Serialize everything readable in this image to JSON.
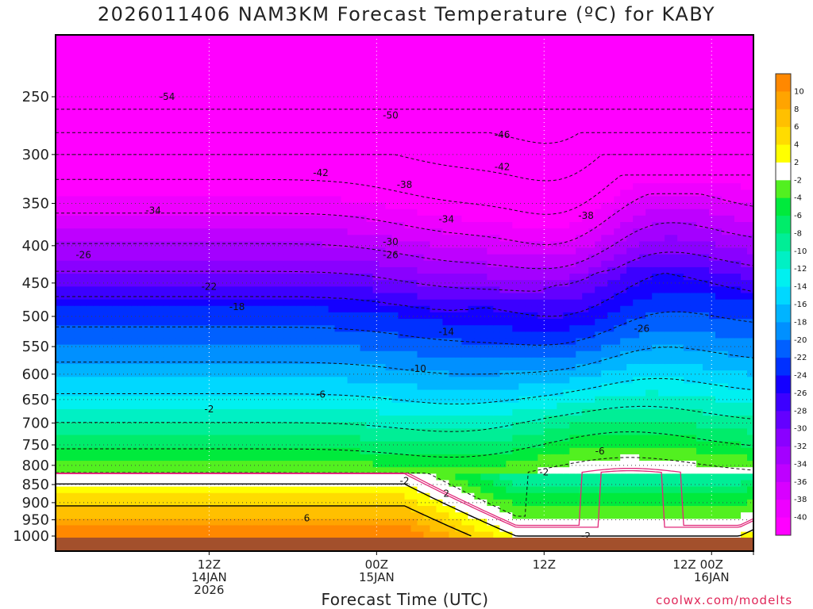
{
  "chart_data": {
    "type": "heatmap",
    "title": "2026011406 NAM3KM Forecast Temperature (ºC) for KABY",
    "xlabel": "Forecast Time (UTC)",
    "ylabel": "",
    "y_axis": {
      "scale": "log-pressure",
      "reversed": true,
      "range": [
        1000,
        200
      ],
      "ticks": [
        250,
        300,
        350,
        400,
        450,
        500,
        550,
        600,
        650,
        700,
        750,
        800,
        850,
        900,
        950,
        1000
      ]
    },
    "x_axis": {
      "range_hours": [
        -5,
        45
      ],
      "ticks": [
        {
          "hour": 6,
          "lines": [
            "12Z",
            "14JAN",
            "2026"
          ]
        },
        {
          "hour": 18,
          "lines": [
            "00Z",
            "15JAN"
          ]
        },
        {
          "hour": 30,
          "lines": [
            "12Z"
          ]
        },
        {
          "hour": 42,
          "lines": [
            "00Z",
            "16JAN"
          ]
        },
        {
          "hour": 54,
          "lines": [
            "12Z"
          ]
        }
      ]
    },
    "grid": true,
    "colorbar": {
      "placement": "right",
      "labels": [
        10,
        8,
        6,
        4,
        2,
        -2,
        -4,
        -6,
        -8,
        -10,
        -12,
        -14,
        -16,
        -18,
        -20,
        -22,
        -24,
        -26,
        -28,
        -30,
        -32,
        -34,
        -36,
        -38,
        -40
      ]
    },
    "isotherms": [
      {
        "t": -54,
        "label_at": [
          3,
          250
        ]
      },
      {
        "t": -50,
        "label_at": [
          19,
          265
        ]
      },
      {
        "t": -46,
        "label_at": [
          27,
          282
        ],
        "label2_at": [
          49,
          262
        ]
      },
      {
        "t": -42,
        "label_at": [
          14,
          318
        ],
        "label2_at": [
          27,
          312
        ],
        "label3_at": [
          60,
          294
        ]
      },
      {
        "t": -38,
        "label_at": [
          20,
          330
        ],
        "label2_at": [
          33,
          364
        ],
        "label3_at": [
          58,
          322
        ]
      },
      {
        "t": -34,
        "label_at": [
          2,
          358
        ],
        "label2_at": [
          23,
          368
        ],
        "label3_at": [
          58,
          370
        ]
      },
      {
        "t": -30,
        "label_at": [
          19,
          395
        ],
        "label2_at": [
          49,
          425
        ]
      },
      {
        "t": -26,
        "label_at": [
          -3,
          412
        ],
        "label2_at": [
          19,
          412
        ],
        "label3_at": [
          37,
          520
        ]
      },
      {
        "t": -22,
        "label_at": [
          6,
          455
        ],
        "label2_at": [
          56,
          480
        ]
      },
      {
        "t": -18,
        "label_at": [
          8,
          485
        ],
        "label2_at": [
          48,
          515
        ]
      },
      {
        "t": -14,
        "label_at": [
          23,
          525
        ]
      },
      {
        "t": -10,
        "label_at": [
          21,
          590
        ],
        "label2_at": [
          49,
          655
        ]
      },
      {
        "t": -6,
        "label_at": [
          14,
          640
        ],
        "label2_at": [
          34,
          765
        ]
      },
      {
        "t": -2,
        "label_at": [
          6,
          670
        ],
        "label2_at": [
          20,
          840
        ],
        "label3_at": [
          30,
          818
        ],
        "label4_at": [
          33,
          1000
        ],
        "label5_at": [
          48,
          868
        ]
      },
      {
        "t": 2,
        "label_at": [
          23,
          875
        ],
        "style": "solid"
      },
      {
        "t": 6,
        "label_at": [
          13,
          945
        ],
        "style": "solid"
      }
    ]
  },
  "footer": {
    "credit": "coolwx.com/modelts"
  },
  "colors": {
    "ground": "#a3502c",
    "freezing_line": "#e0287a",
    "contour": "#000000"
  }
}
